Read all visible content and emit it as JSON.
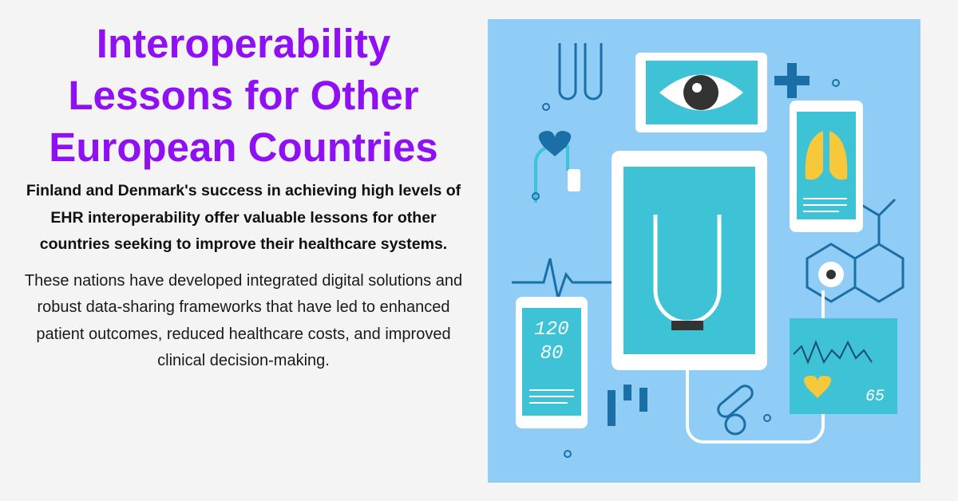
{
  "title": "Interoperability Lessons for Other European Countries",
  "lead": "Finland and Denmark's success in achieving high levels of EHR interoperability offer valuable lessons for other countries seeking to improve their healthcare systems.",
  "body": "These nations have developed integrated digital solutions and robust data-sharing frameworks that have led to enhanced patient outcomes, reduced healthcare costs, and improved clinical decision-making.",
  "illustration": {
    "bp_systolic": "120",
    "bp_diastolic": "80",
    "heart_rate": "65",
    "colors": {
      "background": "#8fcdf6",
      "dark": "#1a6fa6",
      "screen": "#3ec3d6",
      "accent": "#f7c93a"
    }
  }
}
